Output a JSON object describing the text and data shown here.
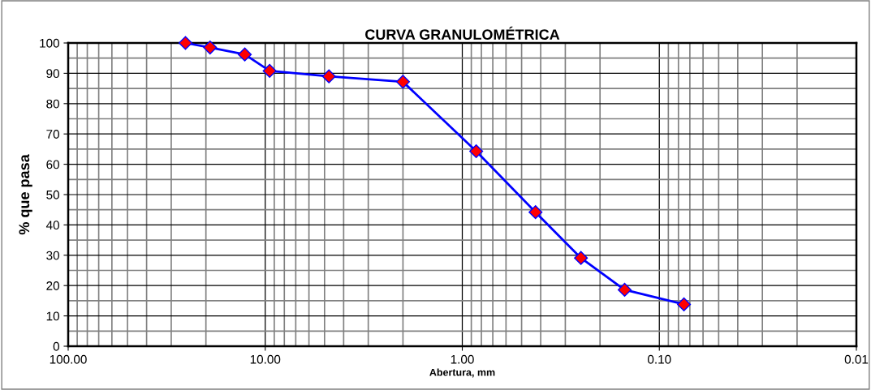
{
  "chart_data": {
    "type": "line",
    "title": "CURVA GRANULOMÉTRICA",
    "xlabel": "Abertura, mm",
    "ylabel": "% que pasa",
    "x": [
      25.4,
      19.05,
      12.7,
      9.5,
      4.75,
      2.0,
      0.85,
      0.425,
      0.25,
      0.15,
      0.075
    ],
    "series": [
      {
        "color": "#0000ff",
        "values": [
          100,
          98.5,
          96.2,
          90.8,
          89.0,
          87.2,
          64.3,
          44.2,
          29.1,
          18.6,
          13.8
        ]
      }
    ],
    "log": "x",
    "xlim": [
      100,
      0.01
    ],
    "xticks": [
      {
        "value": 100,
        "label": "100.00"
      },
      {
        "value": 10,
        "label": "10.00"
      },
      {
        "value": 1,
        "label": "1.00"
      },
      {
        "value": 0.1,
        "label": "0.10"
      },
      {
        "value": 0.01,
        "label": "0.01"
      }
    ],
    "ylim": [
      0,
      100
    ],
    "yticks": [
      0,
      10,
      20,
      30,
      40,
      50,
      60,
      70,
      80,
      90,
      100
    ],
    "grid": true,
    "marker": "diamond",
    "line_style": "solid",
    "legend": false
  }
}
